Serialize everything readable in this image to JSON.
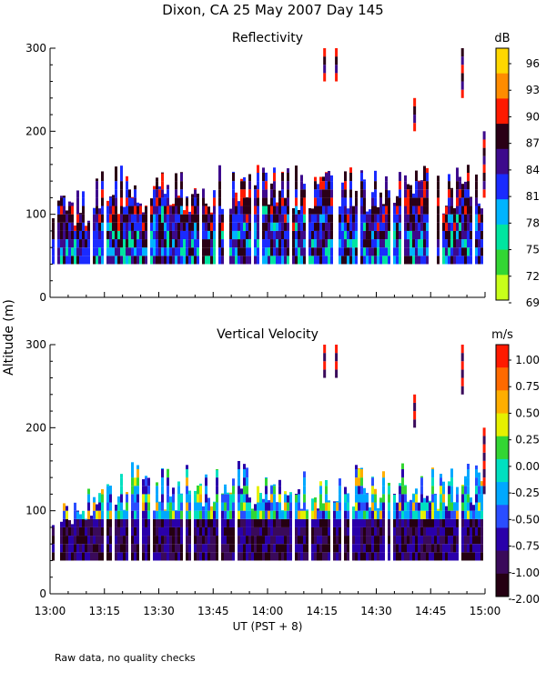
{
  "header": {
    "title": "Dixon, CA 25 May 2007  Day 145"
  },
  "footer": {
    "note": "Raw data, no quality checks"
  },
  "shared_axes": {
    "ylabel": "Altitude (m)",
    "xlabel": "UT  (PST + 8)",
    "x_ticks": [
      "13:00",
      "13:15",
      "13:30",
      "13:45",
      "14:00",
      "14:15",
      "14:30",
      "14:45",
      "15:00"
    ],
    "y_ticks": [
      "0",
      "100",
      "200",
      "300"
    ]
  },
  "chart_data": [
    {
      "type": "heatmap",
      "title": "Reflectivity",
      "units": "dB",
      "xlabel": "UT  (PST + 8)",
      "ylabel": "Altitude (m)",
      "xlim": [
        "13:00",
        "15:00"
      ],
      "ylim": [
        0,
        300
      ],
      "colorbar": {
        "ticks": [
          "96",
          "93",
          "90",
          "87",
          "84",
          "81",
          "78",
          "75",
          "72",
          "69"
        ],
        "colors": [
          "#ffd700",
          "#ff8c00",
          "#ff1a00",
          "#2a0016",
          "#3d0a8c",
          "#1a2bff",
          "#00b4ff",
          "#00e5a0",
          "#33d633",
          "#c8ff1a"
        ]
      },
      "summary": "Dense echo layer between about 40 m and 160 m altitude for the full 13:00 to 15:00 interval, with isolated returns near 200 to 300 m around 14:16, 14:40 and 14:52."
    },
    {
      "type": "heatmap",
      "title": "Vertical Velocity",
      "units": "m/s",
      "xlabel": "UT  (PST + 8)",
      "ylabel": "Altitude (m)",
      "xlim": [
        "13:00",
        "15:00"
      ],
      "ylim": [
        0,
        300
      ],
      "colorbar": {
        "ticks": [
          "1.00",
          "0.75",
          "0.50",
          "0.25",
          "0.00",
          "-0.25",
          "-0.50",
          "-0.75",
          "-1.00",
          "-2.00"
        ],
        "colors": [
          "#ff1a00",
          "#ff6a00",
          "#ffae00",
          "#e6f000",
          "#33d633",
          "#00e0c0",
          "#00a8ff",
          "#2a4dff",
          "#2a00aa",
          "#3a0a5a",
          "#250012"
        ]
      },
      "summary": "Mostly downward motion (dark purple to blue) below 100 m, mixed weak updrafts (green to yellow) between 100 m and 160 m from 13:00 to 15:00."
    }
  ]
}
